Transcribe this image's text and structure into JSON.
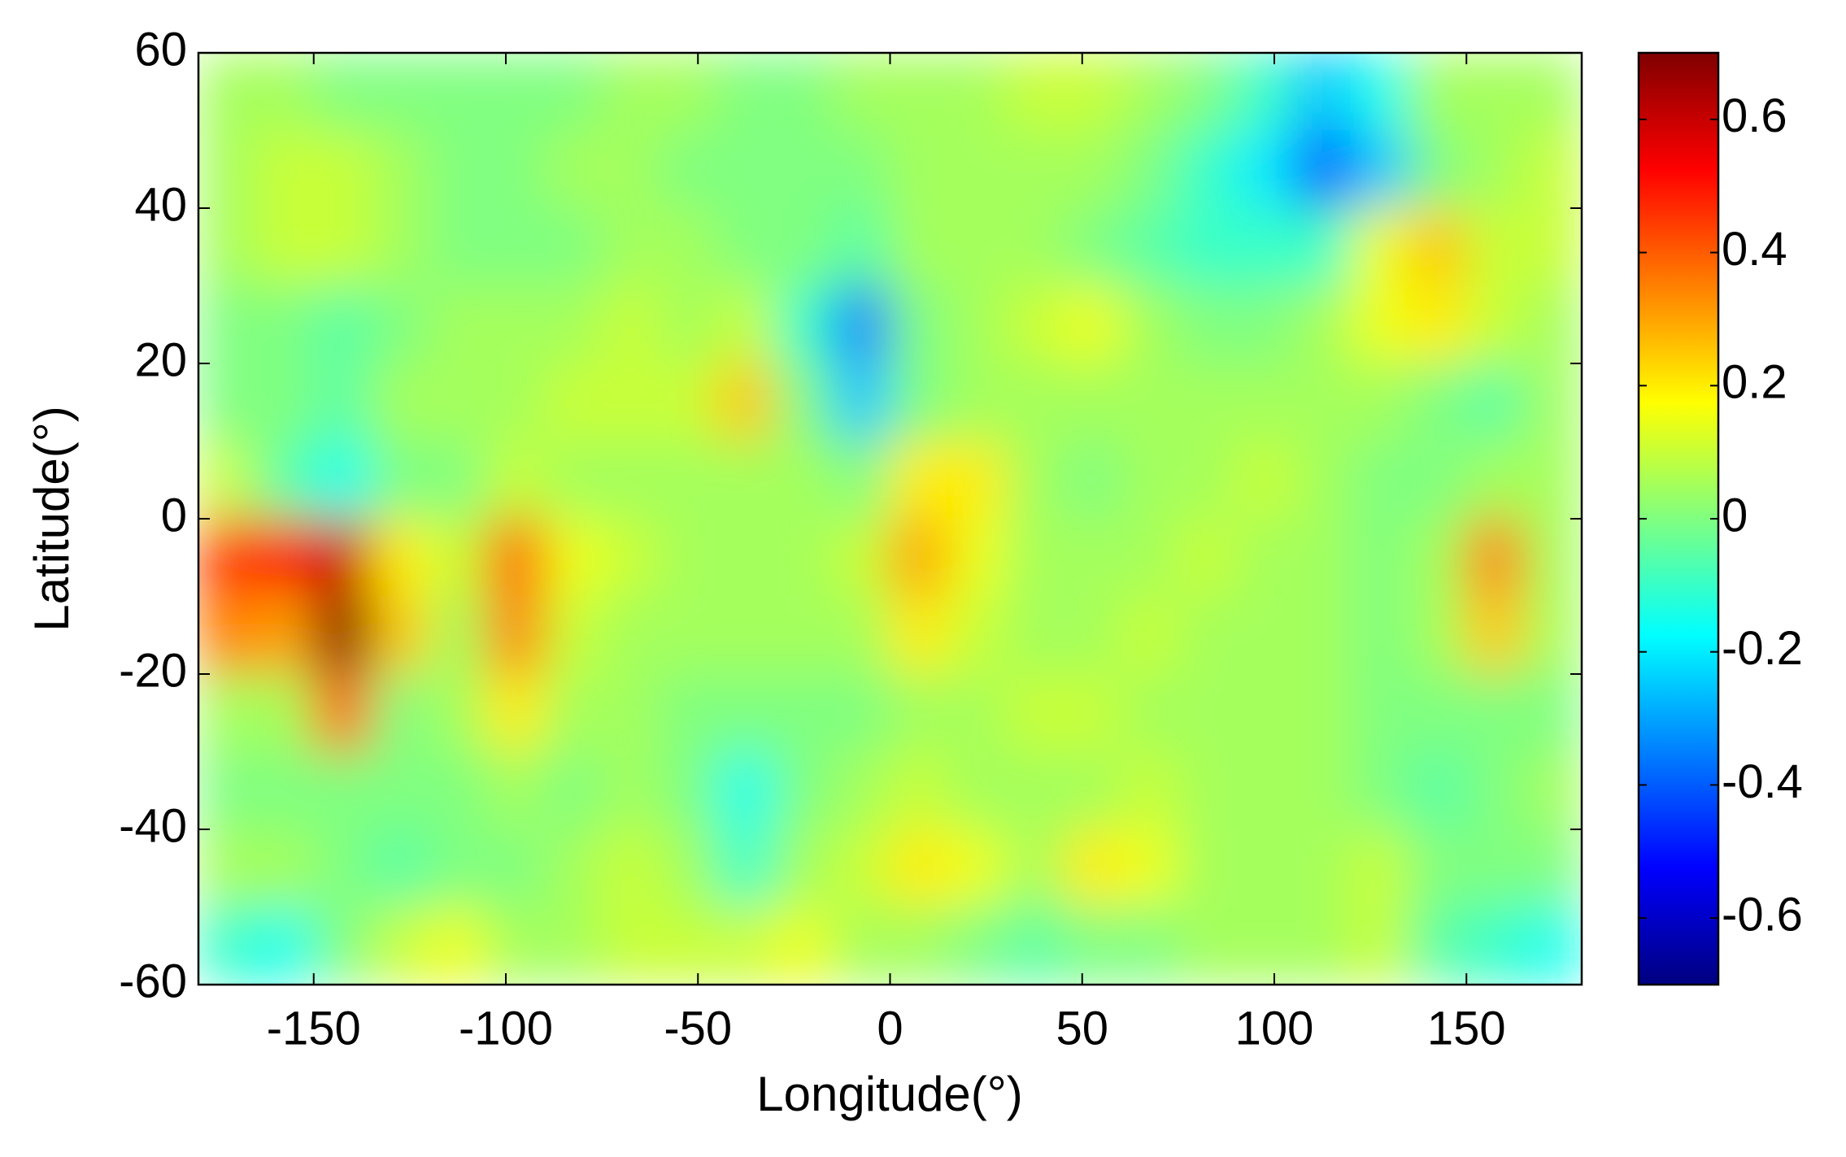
{
  "chart_data": {
    "type": "heatmap",
    "x_label": "Longitude(°)",
    "y_label": "Latitude(°)",
    "x": [
      -172.5,
      -157.5,
      -142.5,
      -127.5,
      -112.5,
      -97.5,
      -82.5,
      -67.5,
      -52.5,
      -37.5,
      -22.5,
      -7.5,
      7.5,
      22.5,
      37.5,
      52.5,
      67.5,
      82.5,
      97.5,
      112.5,
      127.5,
      142.5,
      157.5,
      172.5
    ],
    "y": [
      55,
      45,
      35,
      25,
      15,
      5,
      -5,
      -15,
      -25,
      -35,
      -45,
      -55
    ],
    "z": [
      [
        0.05,
        0.05,
        0,
        0,
        0,
        0,
        0,
        0.05,
        0.05,
        0,
        0,
        0.05,
        0.05,
        0.05,
        0.1,
        0.1,
        0.05,
        0,
        -0.1,
        -0.25,
        -0.15,
        0.05,
        0.05,
        0.05
      ],
      [
        0.05,
        0.1,
        0.1,
        0.05,
        0,
        0,
        0.05,
        0.05,
        0,
        0,
        0,
        0,
        0.05,
        0.05,
        0.05,
        0.05,
        0,
        -0.1,
        -0.2,
        -0.4,
        -0.25,
        0,
        0.05,
        0.1
      ],
      [
        0.05,
        0.1,
        0.1,
        0.05,
        0,
        0,
        0,
        0.05,
        0.05,
        0,
        0,
        -0.05,
        0.05,
        0.05,
        0.05,
        0,
        -0.05,
        -0.1,
        -0.1,
        -0.1,
        0.15,
        0.25,
        0.1,
        0.1
      ],
      [
        0,
        0,
        -0.05,
        0,
        0.05,
        0.05,
        0.05,
        0.1,
        0.05,
        0.1,
        -0.1,
        -0.35,
        0,
        0.05,
        0.1,
        0.15,
        0.05,
        0,
        0,
        0.05,
        0.15,
        0.2,
        0.1,
        0.05
      ],
      [
        0,
        0,
        -0.05,
        0.05,
        0.05,
        0.05,
        0.1,
        0.1,
        0.1,
        0.25,
        0,
        -0.25,
        0,
        0.05,
        0.05,
        0.05,
        0.05,
        0.05,
        0.05,
        0.05,
        0.05,
        0,
        -0.05,
        0.05
      ],
      [
        0.1,
        -0.05,
        -0.15,
        0,
        0,
        0.1,
        0.05,
        0.05,
        0.05,
        0.05,
        0.05,
        0,
        0.2,
        0.2,
        0.05,
        0,
        0.05,
        0.05,
        0.1,
        0.05,
        0,
        0,
        0.05,
        0.05
      ],
      [
        0.45,
        0.5,
        0.6,
        0.2,
        0.1,
        0.4,
        0.15,
        0.1,
        0.05,
        0.05,
        0.05,
        0.1,
        0.3,
        0.15,
        0.05,
        0.05,
        0.05,
        0.1,
        0.05,
        0.05,
        0,
        0.05,
        0.35,
        0.05
      ],
      [
        0.35,
        0.3,
        0.7,
        0.25,
        0.05,
        0.35,
        0.1,
        0.05,
        0.05,
        0.05,
        0.05,
        0.05,
        0.2,
        0.1,
        0.05,
        0.05,
        0.1,
        0.05,
        0.05,
        0.05,
        0,
        0.05,
        0.25,
        0.05
      ],
      [
        0.05,
        0.05,
        0.4,
        0,
        0.05,
        0.2,
        0.05,
        0.05,
        0,
        0,
        0,
        0,
        0.05,
        0.05,
        0.1,
        0.1,
        0.05,
        0.05,
        0.05,
        0.05,
        0,
        0,
        0,
        0
      ],
      [
        0,
        0,
        0,
        0,
        0,
        0.05,
        0,
        0.05,
        0,
        -0.15,
        0,
        0.05,
        0.1,
        0.05,
        0.05,
        0.05,
        0.1,
        0.05,
        0.05,
        0.05,
        0,
        -0.05,
        0,
        0.05
      ],
      [
        0.05,
        0.05,
        0,
        -0.05,
        0,
        0,
        0.05,
        0.1,
        0.05,
        -0.1,
        0.05,
        0.1,
        0.2,
        0.15,
        0.05,
        0.2,
        0.15,
        0.05,
        0.05,
        0.05,
        0.1,
        0,
        0,
        0
      ],
      [
        -0.1,
        -0.15,
        0,
        0.1,
        0.15,
        0.05,
        0.05,
        0.1,
        0.1,
        0.1,
        0.15,
        0.05,
        0.05,
        0,
        -0.05,
        0,
        0,
        0.05,
        0.05,
        0.05,
        0.1,
        -0.05,
        -0.1,
        -0.15
      ]
    ],
    "xlim": [
      -180,
      180
    ],
    "xticks": [
      -150,
      -100,
      -50,
      0,
      50,
      100,
      150
    ],
    "ylim": [
      -60,
      60
    ],
    "yticks": [
      -60,
      -40,
      -20,
      0,
      20,
      40,
      60
    ],
    "colormap": "jet",
    "clim": [
      -0.7,
      0.7
    ],
    "colorbar_ticks": [
      -0.6,
      -0.4,
      -0.2,
      0,
      0.2,
      0.4,
      0.6
    ]
  }
}
